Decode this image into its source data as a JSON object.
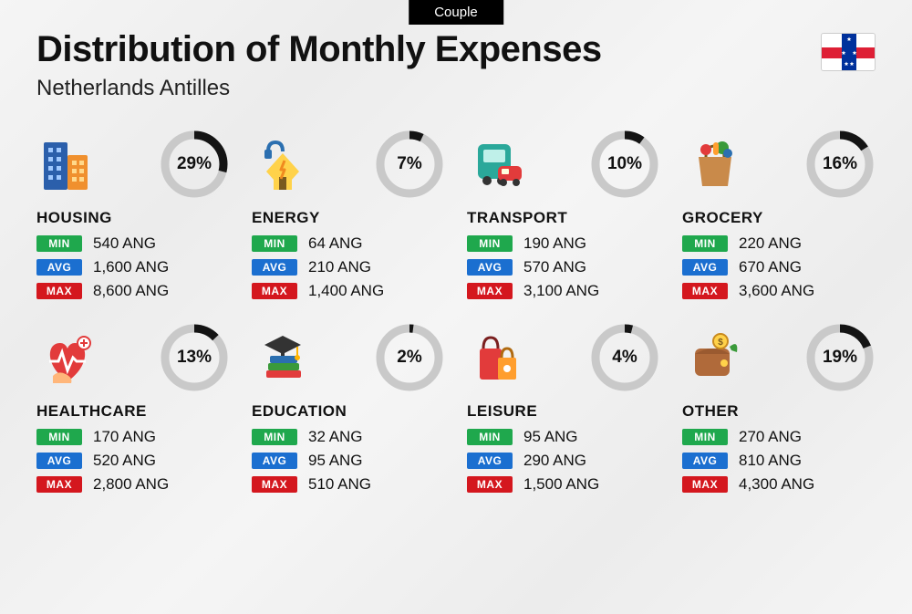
{
  "badge": "Couple",
  "title": "Distribution of Monthly Expenses",
  "subtitle": "Netherlands Antilles",
  "currency": "ANG",
  "labels": {
    "min": "MIN",
    "avg": "AVG",
    "max": "MAX"
  },
  "colors": {
    "min": "#1fa84d",
    "avg": "#1b6fd0",
    "max": "#d4171e",
    "donut_track": "#c9c9c9",
    "donut_fill": "#141414",
    "text": "#111111",
    "badge_bg": "#000000"
  },
  "donut": {
    "radius": 32,
    "stroke": 9
  },
  "flag": {
    "bg": "#ffffff",
    "hstripe": "#de1f35",
    "vstripe": "#00319c",
    "star": "#ffffff"
  },
  "categories": [
    {
      "key": "housing",
      "name": "HOUSING",
      "pct": 29,
      "min": "540",
      "avg": "1,600",
      "max": "8,600"
    },
    {
      "key": "energy",
      "name": "ENERGY",
      "pct": 7,
      "min": "64",
      "avg": "210",
      "max": "1,400"
    },
    {
      "key": "transport",
      "name": "TRANSPORT",
      "pct": 10,
      "min": "190",
      "avg": "570",
      "max": "3,100"
    },
    {
      "key": "grocery",
      "name": "GROCERY",
      "pct": 16,
      "min": "220",
      "avg": "670",
      "max": "3,600"
    },
    {
      "key": "healthcare",
      "name": "HEALTHCARE",
      "pct": 13,
      "min": "170",
      "avg": "520",
      "max": "2,800"
    },
    {
      "key": "education",
      "name": "EDUCATION",
      "pct": 2,
      "min": "32",
      "avg": "95",
      "max": "510"
    },
    {
      "key": "leisure",
      "name": "LEISURE",
      "pct": 4,
      "min": "95",
      "avg": "290",
      "max": "1,500"
    },
    {
      "key": "other",
      "name": "OTHER",
      "pct": 19,
      "min": "270",
      "avg": "810",
      "max": "4,300"
    }
  ],
  "icons": {
    "housing": "<rect x='4' y='6' width='26' height='52' rx='2' fill='#2b5fab'/><rect x='30' y='20' width='22' height='38' rx='2' fill='#f0902e'/><rect x='9' y='12' width='5' height='5' fill='#9fc8ff'/><rect x='18' y='12' width='5' height='5' fill='#9fc8ff'/><rect x='9' y='22' width='5' height='5' fill='#9fc8ff'/><rect x='18' y='22' width='5' height='5' fill='#9fc8ff'/><rect x='9' y='32' width='5' height='5' fill='#9fc8ff'/><rect x='18' y='32' width='5' height='5' fill='#9fc8ff'/><rect x='9' y='42' width='5' height='5' fill='#9fc8ff'/><rect x='18' y='42' width='5' height='5' fill='#9fc8ff'/><rect x='35' y='26' width='5' height='5' fill='#ffd88a'/><rect x='43' y='26' width='5' height='5' fill='#ffd88a'/><rect x='35' y='35' width='5' height='5' fill='#ffd88a'/><rect x='43' y='35' width='5' height='5' fill='#ffd88a'/><rect x='35' y='44' width='5' height='5' fill='#ffd88a'/><rect x='43' y='44' width='5' height='5' fill='#ffd88a'/>",
    "energy": "<path d='M30 58 L12 38 L30 18 L48 38 Z' fill='#ffd24a'/><rect x='20' y='38' width='20' height='20' fill='#ffd24a'/><rect x='26' y='44' width='8' height='14' fill='#7a5a1f'/><path d='M14 16 Q14 6 22 6 Q30 6 30 16' stroke='#2b6fb0' stroke-width='4' fill='none'/><rect x='10' y='14' width='8' height='10' rx='2' fill='#2b6fb0'/><path d='M32 26 L28 36 L32 36 L28 46' stroke='#f08a1f' stroke-width='3' fill='none' stroke-linejoin='round'/>",
    "transport": "<rect x='8' y='8' width='36' height='38' rx='6' fill='#2aa89a'/><rect x='14' y='14' width='24' height='14' rx='2' fill='#bff0e9'/><circle cx='18' cy='48' r='5' fill='#333'/><circle cx='34' cy='48' r='5' fill='#333'/><rect x='30' y='32' width='26' height='16' rx='5' fill='#e23b3b'/><rect x='34' y='35' width='8' height='6' rx='1' fill='#ffd'/><circle cx='36' cy='50' r='4' fill='#333'/><circle cx='50' cy='50' r='4' fill='#333'/>",
    "grocery": "<path d='M14 22 L50 22 L46 54 L18 54 Z' fill='#c98a4a'/><path d='M22 22 Q22 10 32 10 Q42 10 42 22' stroke='#7a5a1f' stroke-width='3' fill='none'/><circle cx='22' cy='14' r='6' fill='#e23b3b'/><circle cx='40' cy='12' r='7' fill='#3a9a3a'/><rect x='30' y='6' width='6' height='14' rx='3' fill='#ff9e2e'/><circle cx='46' cy='18' r='5' fill='#2b6fb0'/>",
    "healthcare": "<path d='M30 56 C6 40 6 14 22 14 C28 14 30 20 30 20 C30 20 32 14 38 14 C54 14 54 40 30 56 Z' fill='#e23b3b'/><path d='M10 34 L20 34 L24 24 L30 44 L36 30 L40 34 L50 34' stroke='#fff' stroke-width='3' fill='none'/><circle cx='48' cy='14' r='7' fill='#fff' stroke='#e23b3b' stroke-width='2'/><path d='M48 10 L48 18 M44 14 L52 14' stroke='#e23b3b' stroke-width='2'/><path d='M14 50 Q20 44 28 48 Q36 52 34 58 L14 58 Z' fill='#ffb67a'/>",
    "education": "<rect x='14' y='36' width='34' height='8' rx='2' fill='#3a9a3a'/><rect x='12' y='44' width='38' height='8' rx='2' fill='#e23b3b'/><rect x='16' y='28' width='30' height='8' rx='2' fill='#2b6fb0'/><path d='M30 6 L50 16 L30 26 L10 16 Z' fill='#333'/><rect x='28' y='16' width='4' height='12' fill='#333'/><path d='M46 18 L46 28' stroke='#ffb400' stroke-width='2'/><circle cx='46' cy='30' r='3' fill='#ffb400'/>",
    "leisure": "<rect x='10' y='20' width='24' height='34' rx='3' fill='#e23b3b'/><path d='M14 20 Q14 8 22 8 Q30 8 30 20' stroke='#7a1f1f' stroke-width='3' fill='none'/><rect x='30' y='30' width='20' height='24' rx='2' fill='#ff9e2e'/><path d='M34 30 Q34 20 40 20 Q46 20 46 30' stroke='#b06a10' stroke-width='3' fill='none'/><circle cx='40' cy='42' r='4' fill='#fff'/>",
    "other": "<rect x='10' y='20' width='38' height='30' rx='6' fill='#b06a3a'/><path d='M10 26 Q30 14 48 26' fill='#9a5a30'/><circle cx='42' cy='36' r='4' fill='#ffd24a'/><circle cx='38' cy='12' r='8' fill='#ffd24a' stroke='#c98a1f' stroke-width='2'/><text x='38' y='16' font-size='10' text-anchor='middle' fill='#7a5a1f' font-weight='bold'>$</text><path d='M48 18 Q58 10 56 24 L50 22 Z' fill='#3a9a3a'/>"
  }
}
